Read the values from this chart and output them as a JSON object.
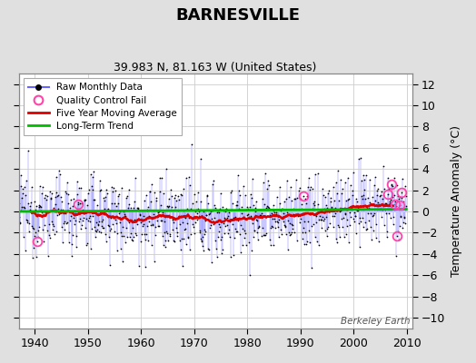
{
  "title": "BARNESVILLE",
  "subtitle": "39.983 N, 81.163 W (United States)",
  "ylabel": "Temperature Anomaly (°C)",
  "watermark": "Berkeley Earth",
  "xlim": [
    1937,
    2011
  ],
  "ylim": [
    -11,
    13
  ],
  "yticks": [
    -10,
    -8,
    -6,
    -4,
    -2,
    0,
    2,
    4,
    6,
    8,
    10,
    12
  ],
  "xticks": [
    1940,
    1950,
    1960,
    1970,
    1980,
    1990,
    2000,
    2010
  ],
  "bg_color": "#e0e0e0",
  "plot_bg_color": "#ffffff",
  "raw_line_color": "#6666ff",
  "raw_dot_color": "#000000",
  "ma_color": "#dd0000",
  "trend_color": "#00bb00",
  "qc_color": "#ff44aa",
  "seed": 12345
}
